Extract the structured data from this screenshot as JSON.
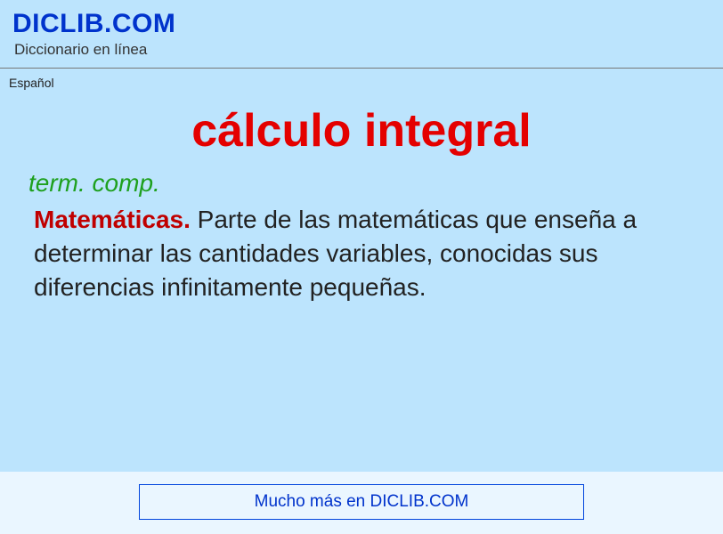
{
  "header": {
    "site_title": "DICLIB.COM",
    "site_subtitle": "Diccionario en línea"
  },
  "language_label": "Español",
  "entry": {
    "headword": "cálculo integral",
    "part_of_speech": "term. comp.",
    "subject_label": "Matemáticas.",
    "definition_body": " Parte de las matemáticas que enseña a determinar las cantidades variables, conocidas sus diferencias infinitamente pequeñas."
  },
  "footer": {
    "more_text": "Mucho más en DICLIB.COM"
  },
  "colors": {
    "page_bg": "#bce4fd",
    "brand_blue": "#0033cc",
    "headword_red": "#e40000",
    "subject_red": "#c00000",
    "pos_green": "#1ea01e",
    "footer_bg": "#eaf6ff"
  }
}
